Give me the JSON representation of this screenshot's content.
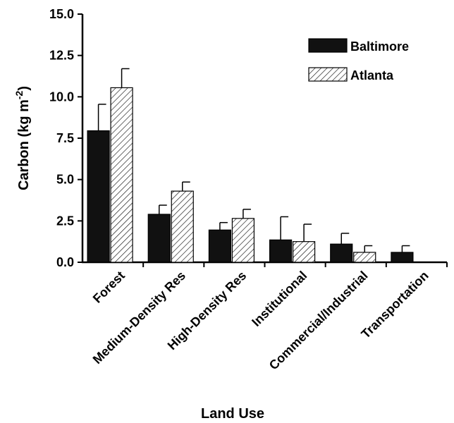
{
  "chart_data": {
    "type": "bar",
    "categories": [
      "Forest",
      "Medium-Density Res",
      "High-Density Res",
      "Institutional",
      "Commercial/Industrial",
      "Transportation"
    ],
    "series": [
      {
        "name": "Baltimore",
        "values": [
          7.95,
          2.9,
          1.95,
          1.35,
          1.1,
          0.6
        ],
        "errors": [
          1.6,
          0.55,
          0.45,
          1.4,
          0.65,
          0.4
        ],
        "fill": "solid"
      },
      {
        "name": "Atlanta",
        "values": [
          10.55,
          4.3,
          2.65,
          1.25,
          0.6,
          null
        ],
        "errors": [
          1.15,
          0.55,
          0.55,
          1.05,
          0.4,
          null
        ],
        "fill": "hatched"
      }
    ],
    "xlabel": "Land Use",
    "ylabel": {
      "main": "Carbon (kg m",
      "sup": "-2",
      "close": ")"
    },
    "ylim": [
      0,
      15
    ],
    "yticks": [
      "0.0",
      "2.5",
      "5.0",
      "7.5",
      "10.0",
      "12.5",
      "15.0"
    ],
    "ytick_values": [
      0,
      2.5,
      5,
      7.5,
      10,
      12.5,
      15
    ],
    "legend_position": "top-right",
    "grid": false,
    "colors": {
      "bar": "#111111",
      "hatch": "#000000",
      "axis": "#000000",
      "background": "#ffffff"
    }
  }
}
